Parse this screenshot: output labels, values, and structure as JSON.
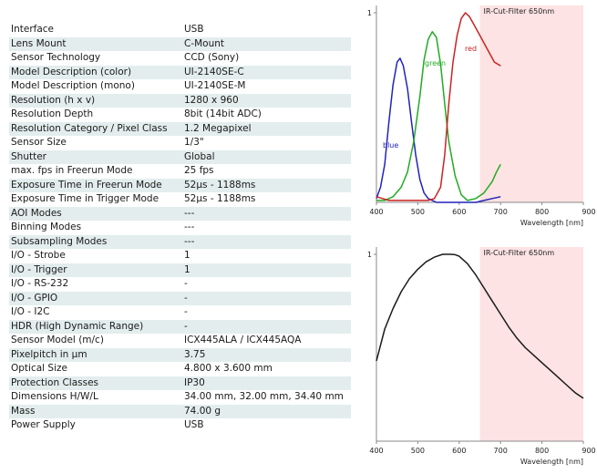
{
  "specs": [
    {
      "label": "Interface",
      "value": "USB"
    },
    {
      "label": "Lens Mount",
      "value": "C-Mount"
    },
    {
      "label": "Sensor Technology",
      "value": "CCD (Sony)"
    },
    {
      "label": "Model Description (color)",
      "value": "UI-2140SE-C"
    },
    {
      "label": "Model Description (mono)",
      "value": "UI-2140SE-M"
    },
    {
      "label": "Resolution (h x v)",
      "value": "1280 x 960"
    },
    {
      "label": "Resolution Depth",
      "value": "8bit (14bit ADC)"
    },
    {
      "label": "Resolution Category / Pixel Class",
      "value": "1.2 Megapixel"
    },
    {
      "label": "Sensor Size",
      "value": "1/3\""
    },
    {
      "label": "Shutter",
      "value": "Global"
    },
    {
      "label": "max. fps in Freerun Mode",
      "value": "25 fps"
    },
    {
      "label": "Exposure Time in Freerun Mode",
      "value": "52µs - 1188ms"
    },
    {
      "label": "Exposure Time in Trigger Mode",
      "value": "52µs - 1188ms"
    },
    {
      "label": "AOI Modes",
      "value": "---"
    },
    {
      "label": "Binning Modes",
      "value": "---"
    },
    {
      "label": "Subsampling Modes",
      "value": "---"
    },
    {
      "label": "I/O - Strobe",
      "value": "1"
    },
    {
      "label": "I/O - Trigger",
      "value": "1"
    },
    {
      "label": "I/O - RS-232",
      "value": "-"
    },
    {
      "label": "I/O - GPIO",
      "value": "-"
    },
    {
      "label": "I/O - I2C",
      "value": "-"
    },
    {
      "label": "HDR (High Dynamic Range)",
      "value": "-"
    },
    {
      "label": "Sensor Model (m/c)",
      "value": "ICX445ALA / ICX445AQA"
    },
    {
      "label": "Pixelpitch in µm",
      "value": "3.75"
    },
    {
      "label": "Optical Size",
      "value": "4.800 x 3.600 mm"
    },
    {
      "label": "Protection Classes",
      "value": "IP30"
    },
    {
      "label": "Dimensions H/W/L",
      "value": "34.00 mm, 32.00 mm, 34.40 mm"
    },
    {
      "label": "Mass",
      "value": "74.00 g"
    },
    {
      "label": "Power Supply",
      "value": "USB"
    }
  ],
  "chart_data": [
    {
      "type": "line",
      "xlabel": "Wavelength [nm]",
      "ylabel": "",
      "xlim": [
        400,
        900
      ],
      "ylim": [
        0,
        1
      ],
      "xticks": [
        "400",
        "500",
        "600",
        "700",
        "800",
        "900"
      ],
      "yticks": [
        "1"
      ],
      "annotation": "IR-Cut-Filter 650nm",
      "shaded_region": [
        650,
        900
      ],
      "colors": {
        "shade": "#fde3e3",
        "blue": "#2222bb",
        "green": "#22aa22",
        "red": "#cc2222",
        "axis": "#888888"
      },
      "series": [
        {
          "name": "blue",
          "color": "blue",
          "x": [
            400,
            410,
            420,
            430,
            440,
            450,
            457,
            465,
            475,
            485,
            495,
            505,
            515,
            525,
            535,
            545,
            560,
            580,
            600,
            620,
            640,
            660,
            680,
            700
          ],
          "y": [
            0.02,
            0.08,
            0.2,
            0.42,
            0.62,
            0.74,
            0.76,
            0.72,
            0.6,
            0.42,
            0.25,
            0.12,
            0.05,
            0.02,
            0.01,
            0.0,
            0.0,
            0.0,
            0.0,
            0.0,
            0.0,
            0.01,
            0.02,
            0.03
          ]
        },
        {
          "name": "green",
          "color": "green",
          "x": [
            400,
            420,
            440,
            460,
            475,
            490,
            505,
            515,
            525,
            535,
            545,
            555,
            565,
            575,
            590,
            605,
            620,
            640,
            660,
            680,
            690,
            700
          ],
          "y": [
            0.01,
            0.01,
            0.03,
            0.08,
            0.16,
            0.32,
            0.56,
            0.75,
            0.86,
            0.9,
            0.87,
            0.73,
            0.52,
            0.32,
            0.14,
            0.04,
            0.01,
            0.02,
            0.05,
            0.11,
            0.16,
            0.2
          ]
        },
        {
          "name": "red",
          "color": "red",
          "x": [
            400,
            415,
            430,
            450,
            470,
            490,
            510,
            525,
            540,
            555,
            565,
            575,
            585,
            595,
            605,
            615,
            625,
            640,
            655,
            670,
            685,
            700
          ],
          "y": [
            0.03,
            0.02,
            0.01,
            0.01,
            0.01,
            0.01,
            0.01,
            0.01,
            0.02,
            0.08,
            0.25,
            0.52,
            0.74,
            0.88,
            0.97,
            1.0,
            0.98,
            0.92,
            0.86,
            0.8,
            0.74,
            0.72
          ]
        }
      ]
    },
    {
      "type": "line",
      "xlabel": "Wavelength [nm]",
      "ylabel": "",
      "xlim": [
        400,
        900
      ],
      "ylim": [
        0,
        1
      ],
      "xticks": [
        "400",
        "500",
        "600",
        "700",
        "800",
        "900"
      ],
      "yticks": [
        "1"
      ],
      "annotation": "IR-Cut-Filter 650nm",
      "shaded_region": [
        650,
        900
      ],
      "colors": {
        "shade": "#fde3e3",
        "line": "#1a1a1a",
        "axis": "#888888"
      },
      "series": [
        {
          "name": "",
          "color": "line",
          "x": [
            400,
            420,
            440,
            460,
            480,
            500,
            520,
            540,
            560,
            580,
            590,
            600,
            620,
            640,
            660,
            680,
            700,
            720,
            740,
            760,
            780,
            800,
            820,
            840,
            860,
            880,
            900
          ],
          "y": [
            0.43,
            0.6,
            0.71,
            0.8,
            0.87,
            0.92,
            0.96,
            0.985,
            1.0,
            1.0,
            0.998,
            0.99,
            0.95,
            0.89,
            0.82,
            0.75,
            0.68,
            0.61,
            0.55,
            0.5,
            0.46,
            0.42,
            0.38,
            0.34,
            0.3,
            0.26,
            0.23
          ]
        }
      ]
    }
  ]
}
